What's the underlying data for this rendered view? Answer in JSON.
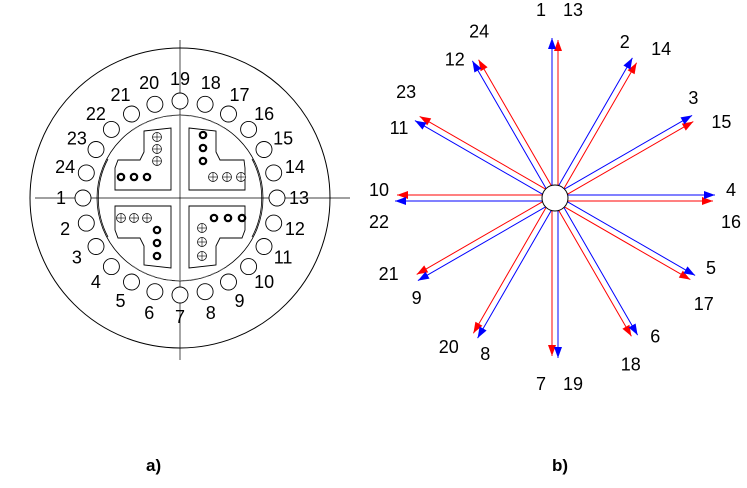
{
  "panels": [
    {
      "id": "a",
      "label": "a)"
    },
    {
      "id": "b",
      "label": "b)"
    }
  ],
  "stator": {
    "slot_count": 24,
    "slot_labels": [
      "1",
      "2",
      "3",
      "4",
      "5",
      "6",
      "7",
      "8",
      "9",
      "10",
      "11",
      "12",
      "13",
      "14",
      "15",
      "16",
      "17",
      "18",
      "19",
      "20",
      "21",
      "22",
      "23",
      "24"
    ]
  },
  "phasors": {
    "count": 12,
    "pairs": [
      {
        "first": "1",
        "second": "13",
        "angle_deg": 90
      },
      {
        "first": "2",
        "second": "14",
        "angle_deg": 60
      },
      {
        "first": "3",
        "second": "15",
        "angle_deg": 30
      },
      {
        "first": "4",
        "second": "16",
        "angle_deg": 0
      },
      {
        "first": "5",
        "second": "17",
        "angle_deg": -30
      },
      {
        "first": "6",
        "second": "18",
        "angle_deg": -60
      },
      {
        "first": "7",
        "second": "19",
        "angle_deg": -90
      },
      {
        "first": "8",
        "second": "20",
        "angle_deg": -120
      },
      {
        "first": "9",
        "second": "21",
        "angle_deg": -150
      },
      {
        "first": "10",
        "second": "22",
        "angle_deg": 180
      },
      {
        "first": "11",
        "second": "23",
        "angle_deg": 150
      },
      {
        "first": "12",
        "second": "24",
        "angle_deg": 120
      }
    ],
    "colors": {
      "first_series": "#ff0000",
      "second_series": "#0000ff"
    }
  }
}
